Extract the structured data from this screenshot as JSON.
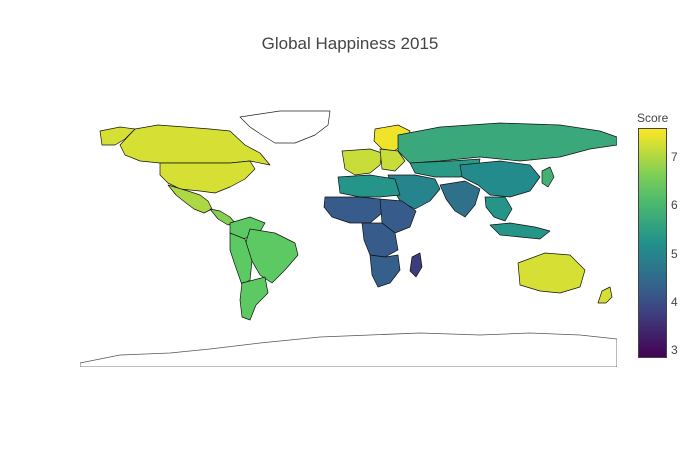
{
  "title": "Global Happiness 2015",
  "colorbar": {
    "title": "Score",
    "min": 2.84,
    "max": 7.6,
    "ticks": [
      "3",
      "4",
      "5",
      "6",
      "7"
    ],
    "colorscale": [
      "#440154",
      "#3b528b",
      "#21918c",
      "#5ec962",
      "#fde725"
    ]
  },
  "map_data": {
    "type": "choropleth",
    "projection": "equirectangular",
    "regions": [
      {
        "name": "North America",
        "value": 7.3
      },
      {
        "name": "Central America",
        "value": 6.7
      },
      {
        "name": "Mexico",
        "value": 7.0
      },
      {
        "name": "South America",
        "value": 6.4
      },
      {
        "name": "Greenland",
        "value": null
      },
      {
        "name": "Western Europe",
        "value": 7.2
      },
      {
        "name": "Nordic countries",
        "value": 7.5
      },
      {
        "name": "Russia",
        "value": 5.7
      },
      {
        "name": "Central Asia",
        "value": 5.4
      },
      {
        "name": "Middle East",
        "value": 5.0
      },
      {
        "name": "South Asia",
        "value": 4.6
      },
      {
        "name": "China",
        "value": 5.1
      },
      {
        "name": "Japan",
        "value": 5.9
      },
      {
        "name": "Southeast Asia",
        "value": 5.3
      },
      {
        "name": "North Africa",
        "value": 5.3
      },
      {
        "name": "Sub-Saharan Africa",
        "value": 4.2
      },
      {
        "name": "Southern Africa",
        "value": 4.3
      },
      {
        "name": "Madagascar",
        "value": 3.7
      },
      {
        "name": "Australia",
        "value": 7.3
      },
      {
        "name": "New Zealand",
        "value": 7.3
      },
      {
        "name": "Antarctica",
        "value": null
      }
    ]
  }
}
